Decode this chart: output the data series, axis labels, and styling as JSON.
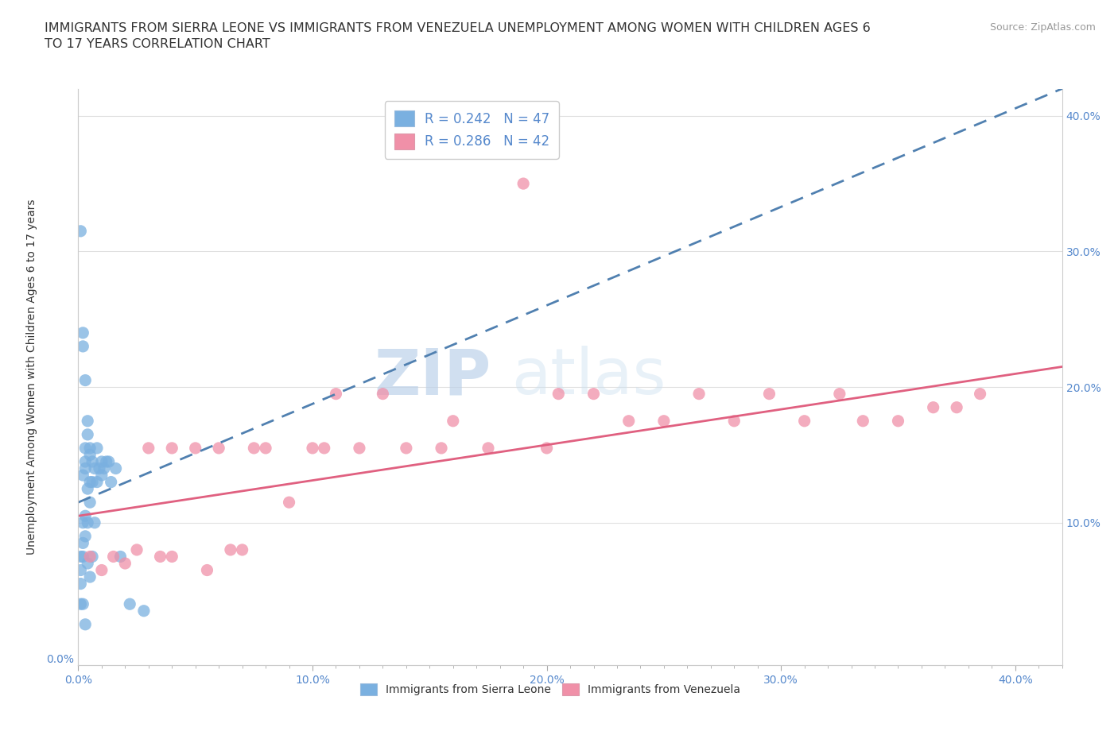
{
  "title": "IMMIGRANTS FROM SIERRA LEONE VS IMMIGRANTS FROM VENEZUELA UNEMPLOYMENT AMONG WOMEN WITH CHILDREN AGES 6\nTO 17 YEARS CORRELATION CHART",
  "source_text": "Source: ZipAtlas.com",
  "ylabel": "Unemployment Among Women with Children Ages 6 to 17 years",
  "xlim": [
    0.0,
    0.42
  ],
  "ylim": [
    -0.005,
    0.42
  ],
  "watermark_zip": "ZIP",
  "watermark_atlas": "atlas",
  "legend_r_entries": [
    {
      "label": "R = 0.242   N = 47",
      "color": "#a8c8f0"
    },
    {
      "label": "R = 0.286   N = 42",
      "color": "#f5a0b8"
    }
  ],
  "legend_bottom": [
    "Immigrants from Sierra Leone",
    "Immigrants from Venezuela"
  ],
  "sierra_leone_color": "#7ab0e0",
  "venezuela_color": "#f090a8",
  "sierra_leone_line_color": "#5080b0",
  "venezuela_line_color": "#e06080",
  "background_color": "#ffffff",
  "grid_color": "#e0e0e0",
  "title_color": "#333333",
  "axis_label_color": "#5588cc",
  "right_yticks": [
    0.1,
    0.2,
    0.3,
    0.4
  ],
  "right_ytick_labels": [
    "10.0%",
    "20.0%",
    "30.0%",
    "40.0%"
  ],
  "sl_x": [
    0.001,
    0.001,
    0.001,
    0.001,
    0.001,
    0.002,
    0.002,
    0.002,
    0.002,
    0.002,
    0.002,
    0.002,
    0.003,
    0.003,
    0.003,
    0.003,
    0.003,
    0.003,
    0.003,
    0.004,
    0.004,
    0.004,
    0.004,
    0.004,
    0.005,
    0.005,
    0.005,
    0.005,
    0.005,
    0.006,
    0.006,
    0.006,
    0.007,
    0.007,
    0.008,
    0.008,
    0.009,
    0.01,
    0.01,
    0.011,
    0.012,
    0.013,
    0.014,
    0.016,
    0.018,
    0.022,
    0.028
  ],
  "sl_y": [
    0.315,
    0.075,
    0.065,
    0.055,
    0.04,
    0.24,
    0.23,
    0.135,
    0.1,
    0.085,
    0.075,
    0.04,
    0.205,
    0.155,
    0.145,
    0.14,
    0.105,
    0.09,
    0.025,
    0.175,
    0.165,
    0.125,
    0.1,
    0.07,
    0.155,
    0.15,
    0.13,
    0.115,
    0.06,
    0.145,
    0.13,
    0.075,
    0.14,
    0.1,
    0.155,
    0.13,
    0.14,
    0.145,
    0.135,
    0.14,
    0.145,
    0.145,
    0.13,
    0.14,
    0.075,
    0.04,
    0.035
  ],
  "vz_x": [
    0.005,
    0.01,
    0.015,
    0.02,
    0.025,
    0.03,
    0.035,
    0.04,
    0.04,
    0.05,
    0.055,
    0.06,
    0.065,
    0.07,
    0.075,
    0.08,
    0.09,
    0.1,
    0.105,
    0.11,
    0.12,
    0.13,
    0.14,
    0.155,
    0.16,
    0.175,
    0.19,
    0.2,
    0.205,
    0.22,
    0.235,
    0.25,
    0.265,
    0.28,
    0.295,
    0.31,
    0.325,
    0.335,
    0.35,
    0.365,
    0.375,
    0.385
  ],
  "vz_y": [
    0.075,
    0.065,
    0.075,
    0.07,
    0.08,
    0.155,
    0.075,
    0.075,
    0.155,
    0.155,
    0.065,
    0.155,
    0.08,
    0.08,
    0.155,
    0.155,
    0.115,
    0.155,
    0.155,
    0.195,
    0.155,
    0.195,
    0.155,
    0.155,
    0.175,
    0.155,
    0.35,
    0.155,
    0.195,
    0.195,
    0.175,
    0.175,
    0.195,
    0.175,
    0.195,
    0.175,
    0.195,
    0.175,
    0.175,
    0.185,
    0.185,
    0.195
  ],
  "sl_line_x": [
    0.0,
    0.42
  ],
  "sl_line_y": [
    0.115,
    0.42
  ],
  "vz_line_x": [
    0.0,
    0.42
  ],
  "vz_line_y": [
    0.105,
    0.215
  ]
}
